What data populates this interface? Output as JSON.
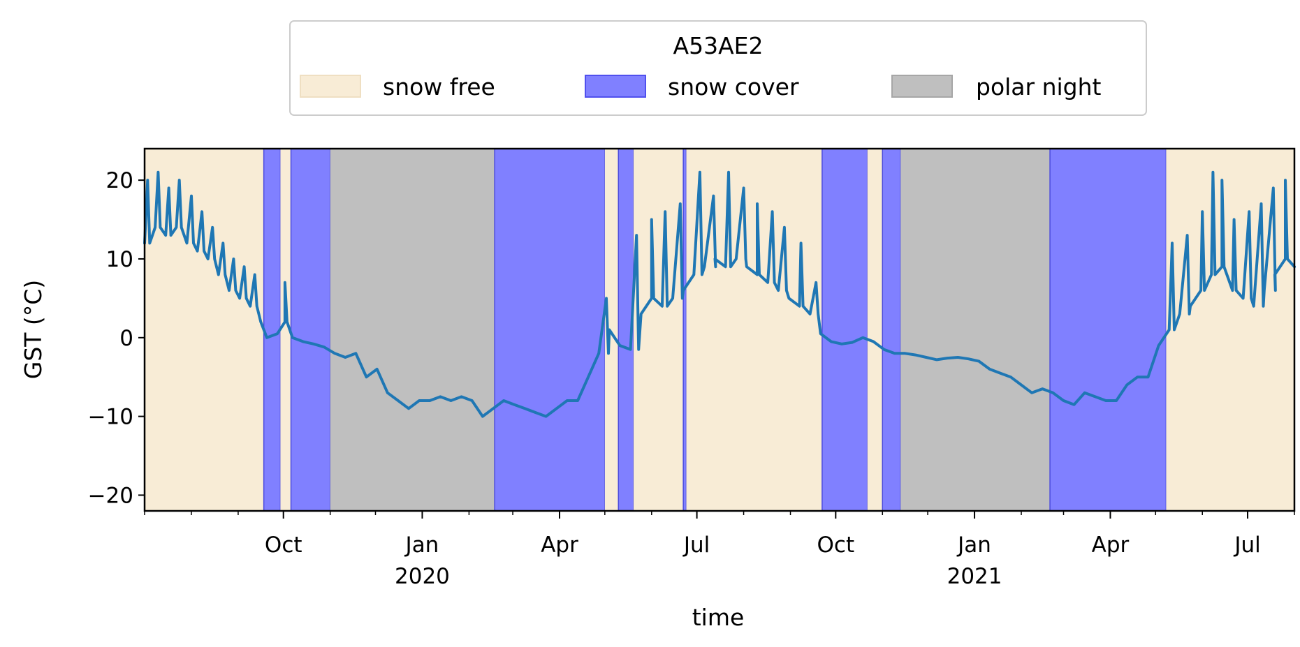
{
  "chart_data": {
    "type": "line",
    "legend": {
      "title": "A53AE2",
      "placement": "top-center (outside plot)",
      "entries": [
        {
          "label": "snow free",
          "color": "#f8ecd6"
        },
        {
          "label": "snow cover",
          "color": "#8080ff"
        },
        {
          "label": "polar night",
          "color": "#bfbfbf"
        }
      ]
    },
    "xlabel": "time",
    "ylabel": "GST (°C)",
    "ylim": [
      -22,
      24
    ],
    "xlim": [
      "2019-07-01",
      "2021-08-01"
    ],
    "yticks": [
      -20,
      -10,
      0,
      10,
      20
    ],
    "ytick_labels": [
      "−20",
      "−10",
      "0",
      "10",
      "20"
    ],
    "xticks": [
      {
        "date": "2019-10-01",
        "label": "Oct",
        "sub": ""
      },
      {
        "date": "2020-01-01",
        "label": "Jan",
        "sub": "2020"
      },
      {
        "date": "2020-04-01",
        "label": "Apr",
        "sub": ""
      },
      {
        "date": "2020-07-01",
        "label": "Jul",
        "sub": ""
      },
      {
        "date": "2020-10-01",
        "label": "Oct",
        "sub": ""
      },
      {
        "date": "2021-01-01",
        "label": "Jan",
        "sub": "2021"
      },
      {
        "date": "2021-04-01",
        "label": "Apr",
        "sub": ""
      },
      {
        "date": "2021-07-01",
        "label": "Jul",
        "sub": ""
      }
    ],
    "periods": [
      {
        "start": "2019-07-01",
        "end": "2019-09-18",
        "type": "snow free"
      },
      {
        "start": "2019-09-18",
        "end": "2019-09-29",
        "type": "snow cover"
      },
      {
        "start": "2019-09-29",
        "end": "2019-10-06",
        "type": "snow free"
      },
      {
        "start": "2019-10-06",
        "end": "2019-11-01",
        "type": "snow cover"
      },
      {
        "start": "2019-11-01",
        "end": "2020-02-18",
        "type": "polar night"
      },
      {
        "start": "2020-02-18",
        "end": "2020-05-01",
        "type": "snow cover"
      },
      {
        "start": "2020-05-01",
        "end": "2020-05-10",
        "type": "snow free"
      },
      {
        "start": "2020-05-10",
        "end": "2020-05-20",
        "type": "snow cover"
      },
      {
        "start": "2020-05-20",
        "end": "2020-06-22",
        "type": "snow free"
      },
      {
        "start": "2020-06-22",
        "end": "2020-06-24",
        "type": "snow cover"
      },
      {
        "start": "2020-06-24",
        "end": "2020-09-22",
        "type": "snow free"
      },
      {
        "start": "2020-09-22",
        "end": "2020-10-22",
        "type": "snow cover"
      },
      {
        "start": "2020-10-22",
        "end": "2020-11-01",
        "type": "snow free"
      },
      {
        "start": "2020-11-01",
        "end": "2020-11-13",
        "type": "snow cover"
      },
      {
        "start": "2020-11-13",
        "end": "2021-02-20",
        "type": "polar night"
      },
      {
        "start": "2021-02-20",
        "end": "2021-05-08",
        "type": "snow cover"
      },
      {
        "start": "2021-05-08",
        "end": "2021-08-01",
        "type": "snow free"
      }
    ],
    "series": [
      {
        "color": "#1f77b4",
        "points": [
          [
            "2019-07-01",
            12
          ],
          [
            "2019-07-08",
            14
          ],
          [
            "2019-07-15",
            13
          ],
          [
            "2019-07-22",
            14
          ],
          [
            "2019-07-29",
            12
          ],
          [
            "2019-08-05",
            11
          ],
          [
            "2019-08-12",
            10
          ],
          [
            "2019-08-19",
            8
          ],
          [
            "2019-08-26",
            6
          ],
          [
            "2019-09-02",
            5
          ],
          [
            "2019-09-09",
            4
          ],
          [
            "2019-09-16",
            2
          ],
          [
            "2019-09-20",
            0
          ],
          [
            "2019-09-27",
            0.5
          ],
          [
            "2019-10-02",
            2
          ],
          [
            "2019-10-07",
            0
          ],
          [
            "2019-10-14",
            -0.5
          ],
          [
            "2019-10-21",
            -0.8
          ],
          [
            "2019-10-28",
            -1.2
          ],
          [
            "2019-11-04",
            -2
          ],
          [
            "2019-11-11",
            -2.5
          ],
          [
            "2019-11-18",
            -2
          ],
          [
            "2019-11-25",
            -5
          ],
          [
            "2019-12-02",
            -4
          ],
          [
            "2019-12-09",
            -7
          ],
          [
            "2019-12-16",
            -8
          ],
          [
            "2019-12-23",
            -9
          ],
          [
            "2019-12-30",
            -8
          ],
          [
            "2020-01-06",
            -8
          ],
          [
            "2020-01-13",
            -7.5
          ],
          [
            "2020-01-20",
            -8
          ],
          [
            "2020-01-27",
            -7.5
          ],
          [
            "2020-02-03",
            -8
          ],
          [
            "2020-02-10",
            -10
          ],
          [
            "2020-02-17",
            -9
          ],
          [
            "2020-02-24",
            -8
          ],
          [
            "2020-03-02",
            -8.5
          ],
          [
            "2020-03-09",
            -9
          ],
          [
            "2020-03-16",
            -9.5
          ],
          [
            "2020-03-23",
            -10
          ],
          [
            "2020-03-30",
            -9
          ],
          [
            "2020-04-06",
            -8
          ],
          [
            "2020-04-13",
            -8
          ],
          [
            "2020-04-20",
            -5
          ],
          [
            "2020-04-27",
            -2
          ],
          [
            "2020-05-04",
            1
          ],
          [
            "2020-05-11",
            -1
          ],
          [
            "2020-05-18",
            -1.5
          ],
          [
            "2020-05-25",
            3
          ],
          [
            "2020-06-01",
            5
          ],
          [
            "2020-06-08",
            4
          ],
          [
            "2020-06-15",
            5
          ],
          [
            "2020-06-22",
            6
          ],
          [
            "2020-06-29",
            8
          ],
          [
            "2020-07-06",
            9
          ],
          [
            "2020-07-13",
            10
          ],
          [
            "2020-07-20",
            9
          ],
          [
            "2020-07-27",
            10
          ],
          [
            "2020-08-03",
            9
          ],
          [
            "2020-08-10",
            8
          ],
          [
            "2020-08-17",
            7
          ],
          [
            "2020-08-24",
            6
          ],
          [
            "2020-08-31",
            5
          ],
          [
            "2020-09-07",
            4
          ],
          [
            "2020-09-14",
            3
          ],
          [
            "2020-09-21",
            0.5
          ],
          [
            "2020-09-28",
            -0.5
          ],
          [
            "2020-10-05",
            -0.8
          ],
          [
            "2020-10-12",
            -0.6
          ],
          [
            "2020-10-19",
            0
          ],
          [
            "2020-10-26",
            -0.5
          ],
          [
            "2020-11-02",
            -1.5
          ],
          [
            "2020-11-09",
            -2
          ],
          [
            "2020-11-16",
            -2
          ],
          [
            "2020-11-23",
            -2.2
          ],
          [
            "2020-11-30",
            -2.5
          ],
          [
            "2020-12-07",
            -2.8
          ],
          [
            "2020-12-14",
            -2.6
          ],
          [
            "2020-12-21",
            -2.5
          ],
          [
            "2020-12-28",
            -2.7
          ],
          [
            "2021-01-04",
            -3
          ],
          [
            "2021-01-11",
            -4
          ],
          [
            "2021-01-18",
            -4.5
          ],
          [
            "2021-01-25",
            -5
          ],
          [
            "2021-02-01",
            -6
          ],
          [
            "2021-02-08",
            -7
          ],
          [
            "2021-02-15",
            -6.5
          ],
          [
            "2021-02-22",
            -7
          ],
          [
            "2021-03-01",
            -8
          ],
          [
            "2021-03-08",
            -8.5
          ],
          [
            "2021-03-15",
            -7
          ],
          [
            "2021-03-22",
            -7.5
          ],
          [
            "2021-03-29",
            -8
          ],
          [
            "2021-04-05",
            -8
          ],
          [
            "2021-04-12",
            -6
          ],
          [
            "2021-04-19",
            -5
          ],
          [
            "2021-04-26",
            -5
          ],
          [
            "2021-05-03",
            -1
          ],
          [
            "2021-05-10",
            1
          ],
          [
            "2021-05-17",
            3
          ],
          [
            "2021-05-24",
            4
          ],
          [
            "2021-05-31",
            6
          ],
          [
            "2021-06-07",
            8
          ],
          [
            "2021-06-14",
            9
          ],
          [
            "2021-06-21",
            6
          ],
          [
            "2021-06-28",
            5
          ],
          [
            "2021-07-05",
            4
          ],
          [
            "2021-07-12",
            6
          ],
          [
            "2021-07-19",
            8
          ],
          [
            "2021-07-26",
            10
          ],
          [
            "2021-08-01",
            9
          ]
        ],
        "spikes": [
          [
            "2019-07-03",
            20
          ],
          [
            "2019-07-10",
            21
          ],
          [
            "2019-07-17",
            19
          ],
          [
            "2019-07-24",
            20
          ],
          [
            "2019-08-01",
            18
          ],
          [
            "2019-08-08",
            16
          ],
          [
            "2019-08-15",
            14
          ],
          [
            "2019-08-22",
            12
          ],
          [
            "2019-08-29",
            10
          ],
          [
            "2019-09-05",
            9
          ],
          [
            "2019-09-12",
            8
          ],
          [
            "2019-10-02",
            7
          ],
          [
            "2020-05-02",
            5
          ],
          [
            "2020-05-22",
            13
          ],
          [
            "2020-06-01",
            15
          ],
          [
            "2020-06-10",
            16
          ],
          [
            "2020-06-20",
            17
          ],
          [
            "2020-07-03",
            21
          ],
          [
            "2020-07-12",
            18
          ],
          [
            "2020-07-22",
            21
          ],
          [
            "2020-08-01",
            19
          ],
          [
            "2020-08-10",
            17
          ],
          [
            "2020-08-20",
            16
          ],
          [
            "2020-08-28",
            14
          ],
          [
            "2020-09-08",
            12
          ],
          [
            "2020-09-18",
            7
          ],
          [
            "2021-05-12",
            12
          ],
          [
            "2021-05-22",
            13
          ],
          [
            "2021-06-01",
            16
          ],
          [
            "2021-06-08",
            21
          ],
          [
            "2021-06-14",
            20
          ],
          [
            "2021-06-22",
            15
          ],
          [
            "2021-07-02",
            16
          ],
          [
            "2021-07-10",
            17
          ],
          [
            "2021-07-18",
            19
          ],
          [
            "2021-07-26",
            20
          ]
        ]
      }
    ]
  }
}
